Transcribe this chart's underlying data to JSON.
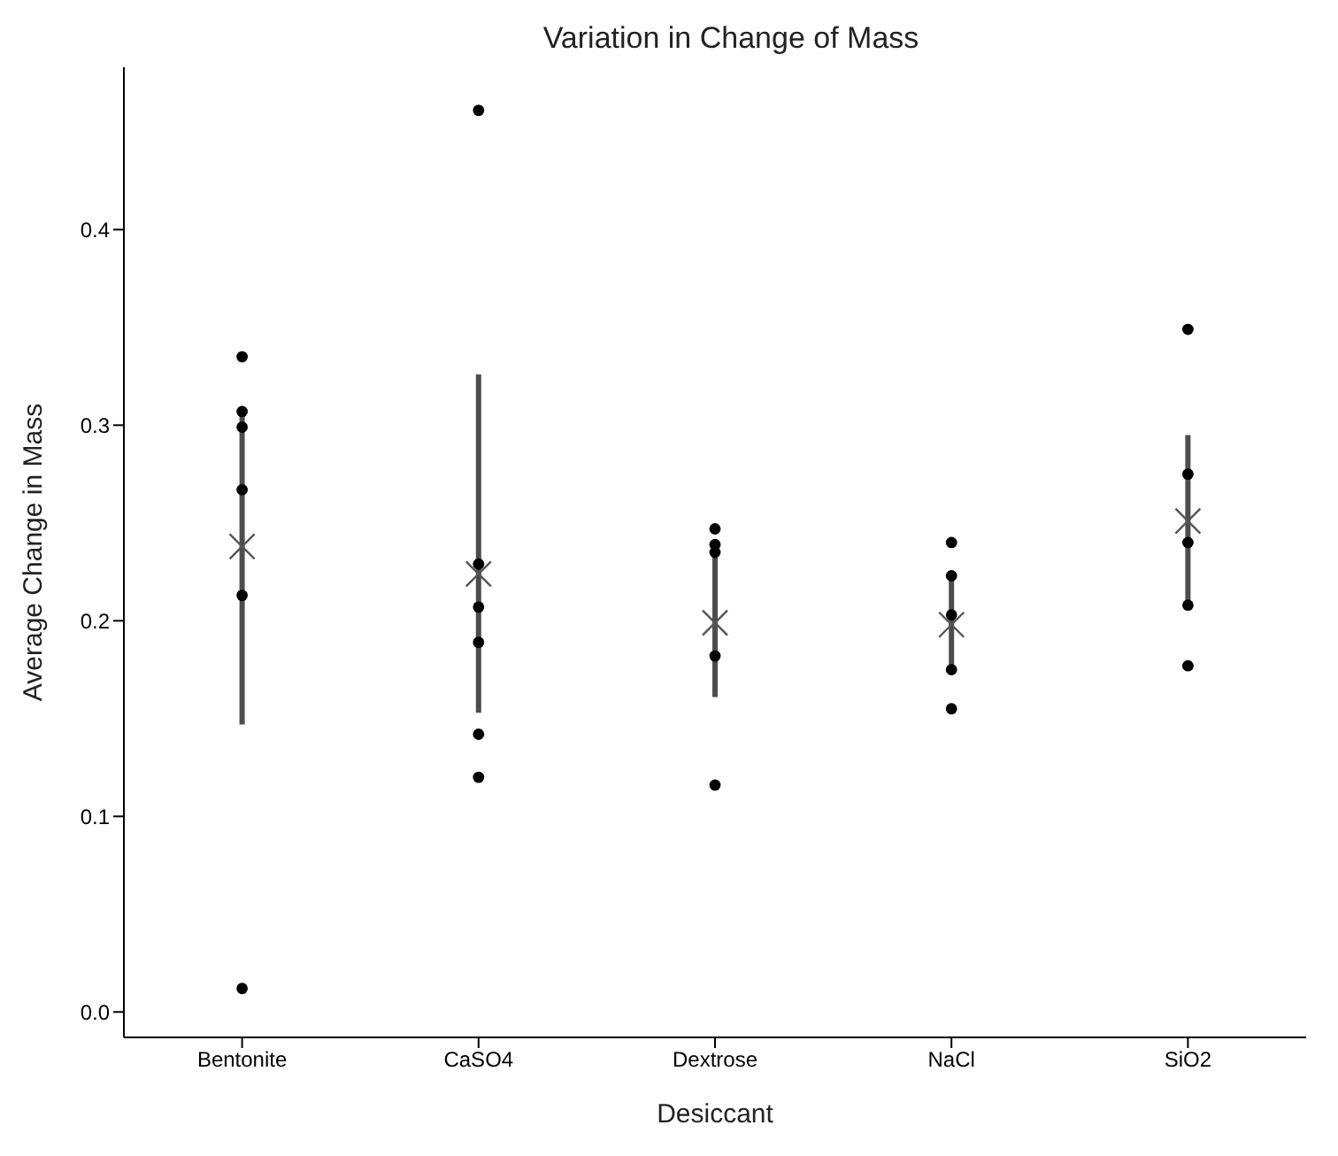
{
  "chart_data": {
    "type": "scatter",
    "title": "Variation in Change of Mass",
    "xlabel": "Desiccant",
    "ylabel": "Average Change in Mass",
    "categories": [
      "Bentonite",
      "CaSO4",
      "Dextrose",
      "NaCl",
      "SiO2"
    ],
    "ylim": [
      -0.013,
      0.483
    ],
    "yticks": [
      {
        "value": 0,
        "label": "0.0"
      },
      0.1,
      0.2,
      0.3,
      0.4
    ],
    "series": [
      {
        "marker": "circle",
        "color": "#000000",
        "x": [
          "Bentonite",
          "Bentonite",
          "Bentonite",
          "Bentonite",
          "Bentonite",
          "Bentonite",
          "CaSO4",
          "CaSO4",
          "CaSO4",
          "CaSO4",
          "CaSO4",
          "CaSO4",
          "Dextrose",
          "Dextrose",
          "Dextrose",
          "Dextrose",
          "Dextrose",
          "NaCl",
          "NaCl",
          "NaCl",
          "NaCl",
          "NaCl",
          "SiO2",
          "SiO2",
          "SiO2",
          "SiO2",
          "SiO2"
        ],
        "values": [
          0.335,
          0.307,
          0.299,
          0.267,
          0.213,
          0.012,
          0.461,
          0.229,
          0.207,
          0.189,
          0.142,
          0.12,
          0.247,
          0.239,
          0.235,
          0.182,
          0.116,
          0.24,
          0.223,
          0.203,
          0.175,
          0.155,
          0.349,
          0.275,
          0.24,
          0.208,
          0.177
        ]
      },
      {
        "marker": "cross",
        "color": "#555555",
        "values": [
          0.238,
          0.224,
          0.199,
          0.198,
          0.251
        ],
        "errors": [
          [
            0.147,
            0.308
          ],
          [
            0.153,
            0.326
          ],
          [
            0.161,
            0.235
          ],
          [
            0.175,
            0.223
          ],
          [
            0.208,
            0.295
          ]
        ]
      }
    ]
  }
}
